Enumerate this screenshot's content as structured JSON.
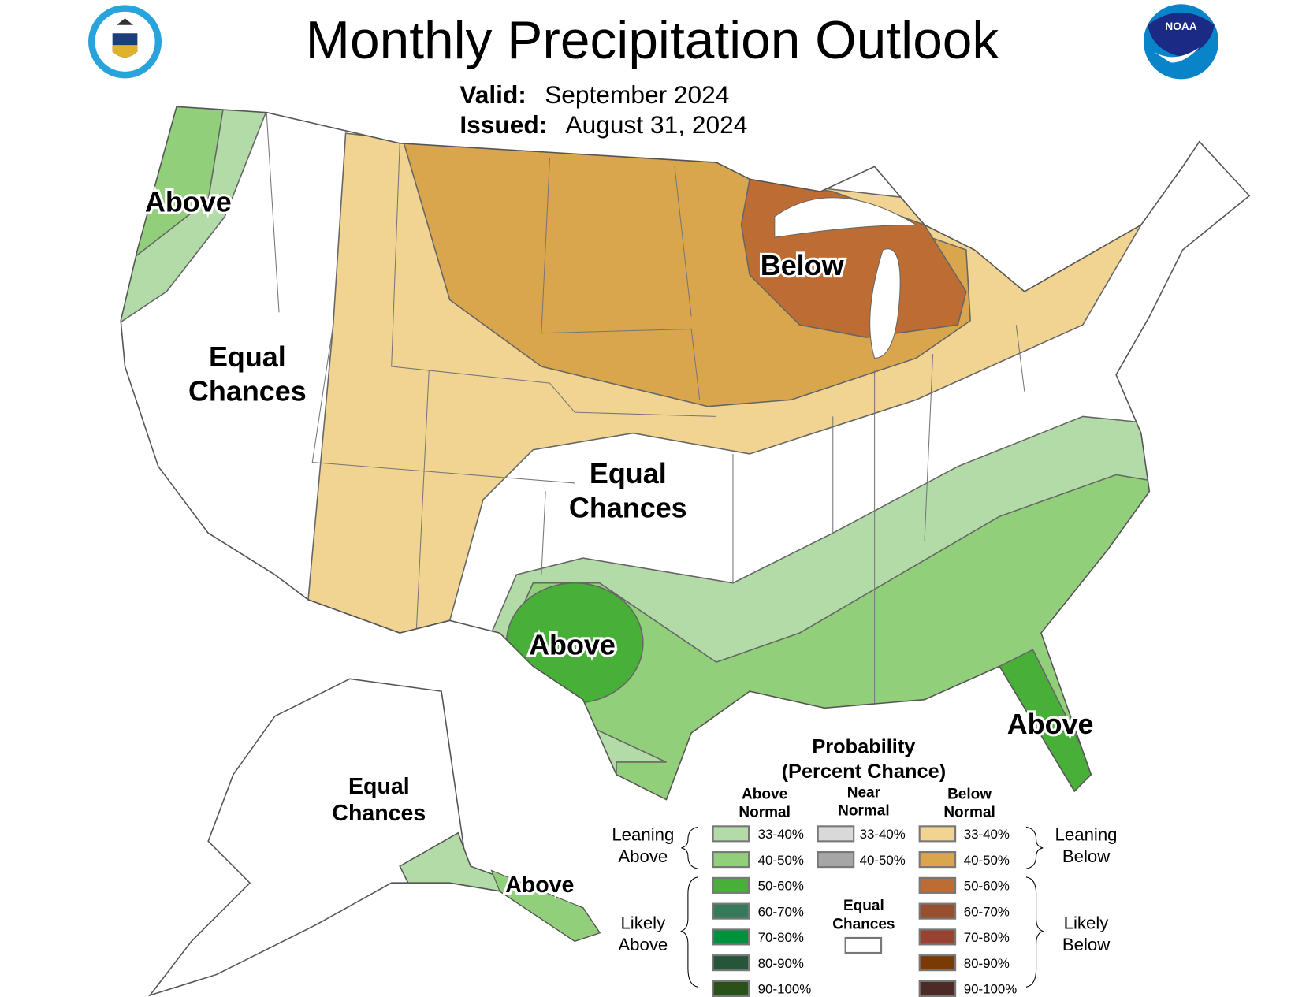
{
  "header": {
    "title": "Monthly Precipitation Outlook",
    "valid_label": "Valid:",
    "valid_value": "September 2024",
    "issued_label": "Issued:",
    "issued_value": "August 31, 2024",
    "logo_left": "Department of Commerce United States of America",
    "logo_right": "NOAA"
  },
  "map": {
    "labels": {
      "nw_above": "Above",
      "west_ec_1": "Equal",
      "west_ec_2": "Chances",
      "below": "Below",
      "central_ec_1": "Equal",
      "central_ec_2": "Chances",
      "tx_above": "Above",
      "fl_above": "Above",
      "ak_ec_1": "Equal",
      "ak_ec_2": "Chances",
      "ak_above": "Above"
    },
    "colors": {
      "above_33_40": "#b3dba8",
      "above_40_50": "#92cf7b",
      "above_50_60": "#48b038",
      "below_33_40": "#f1d491",
      "below_40_50": "#d9a64e",
      "below_50_60": "#bd6c33"
    }
  },
  "legend": {
    "title_1": "Probability",
    "title_2": "(Percent Chance)",
    "col_above_1": "Above",
    "col_above_2": "Normal",
    "col_near_1": "Near",
    "col_near_2": "Normal",
    "col_below_1": "Below",
    "col_below_2": "Normal",
    "leaning_above_1": "Leaning",
    "leaning_above_2": "Above",
    "likely_above_1": "Likely",
    "likely_above_2": "Above",
    "leaning_below_1": "Leaning",
    "leaning_below_2": "Below",
    "likely_below_1": "Likely",
    "likely_below_2": "Below",
    "equal_1": "Equal",
    "equal_2": "Chances",
    "above": [
      {
        "range": "33-40%",
        "color": "#b3dba8"
      },
      {
        "range": "40-50%",
        "color": "#92cf7b"
      },
      {
        "range": "50-60%",
        "color": "#48b038"
      },
      {
        "range": "60-70%",
        "color": "#357b5b"
      },
      {
        "range": "70-80%",
        "color": "#00913f"
      },
      {
        "range": "80-90%",
        "color": "#26553a"
      },
      {
        "range": "90-100%",
        "color": "#2a5118"
      }
    ],
    "near": [
      {
        "range": "33-40%",
        "color": "#d9d9d9"
      },
      {
        "range": "40-50%",
        "color": "#a6a6a6"
      }
    ],
    "below": [
      {
        "range": "33-40%",
        "color": "#f1d491"
      },
      {
        "range": "40-50%",
        "color": "#d9a64e"
      },
      {
        "range": "50-60%",
        "color": "#bd6c33"
      },
      {
        "range": "60-70%",
        "color": "#96502f"
      },
      {
        "range": "70-80%",
        "color": "#9a4231"
      },
      {
        "range": "80-90%",
        "color": "#7a3a06"
      },
      {
        "range": "90-100%",
        "color": "#4c2a26"
      }
    ],
    "equal_color": "#ffffff"
  }
}
